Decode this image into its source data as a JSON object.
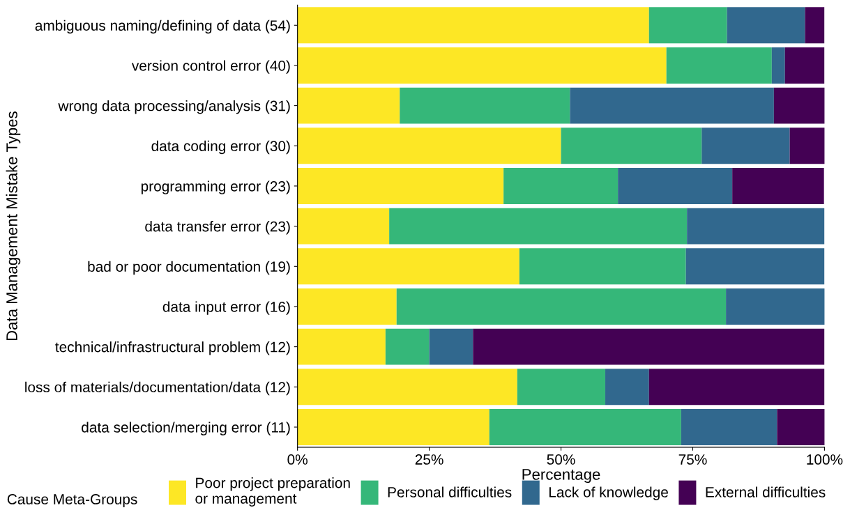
{
  "chart_data": {
    "type": "bar",
    "orientation": "horizontal",
    "stacked": true,
    "xlabel": "Percentage",
    "ylabel": "Data Management Mistake Types",
    "legend_title": "Cause Meta-Groups",
    "legend": "bottom",
    "grid": false,
    "categories": [
      "ambiguous naming/defining of data (54)",
      "version control error (40)",
      "wrong data processing/analysis (31)",
      "data coding error (30)",
      "programming error (23)",
      "data transfer error (23)",
      "bad or poor documentation (19)",
      "data input error (16)",
      "technical/infrastructural problem (12)",
      "loss of materials/documentation/data (12)",
      "data selection/merging error (11)"
    ],
    "xlim": [
      0,
      100
    ],
    "xticks": [
      {
        "value": 0,
        "label": "0%"
      },
      {
        "value": 25,
        "label": "25%"
      },
      {
        "value": 50,
        "label": "50%"
      },
      {
        "value": 75,
        "label": "75%"
      },
      {
        "value": 100,
        "label": "100%"
      }
    ],
    "series": [
      {
        "name": "Poor project preparation\nor management",
        "color": "#fde725",
        "values": [
          66.7,
          70.0,
          19.4,
          50.0,
          39.1,
          17.4,
          42.1,
          18.8,
          16.7,
          41.7,
          36.4
        ]
      },
      {
        "name": "Personal difficulties",
        "color": "#35b779",
        "values": [
          14.8,
          20.0,
          32.3,
          26.7,
          21.7,
          56.5,
          31.6,
          62.5,
          8.3,
          16.7,
          36.4
        ]
      },
      {
        "name": "Lack of knowledge",
        "color": "#31688e",
        "values": [
          14.8,
          2.5,
          38.7,
          16.7,
          21.7,
          26.1,
          26.3,
          18.8,
          8.3,
          8.3,
          18.2
        ]
      },
      {
        "name": "External difficulties",
        "color": "#440154",
        "values": [
          3.7,
          7.5,
          9.7,
          6.7,
          17.4,
          0,
          0,
          0,
          66.7,
          33.3,
          9.1
        ]
      }
    ]
  }
}
